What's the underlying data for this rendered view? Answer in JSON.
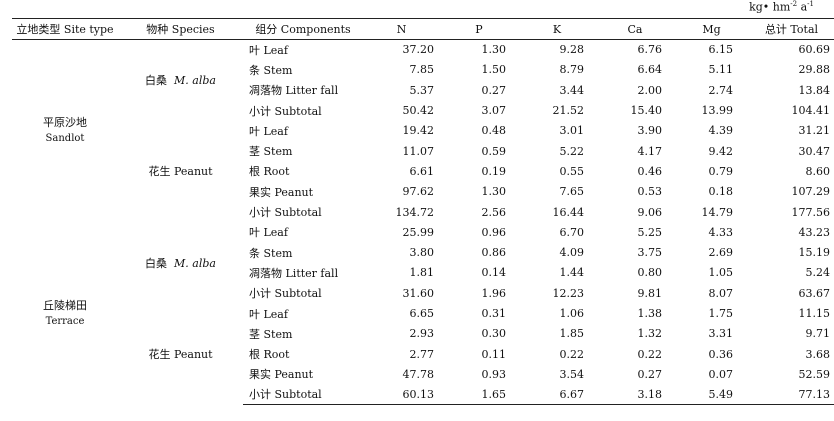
{
  "unit": {
    "base": "kg• hm",
    "exp1": "-2",
    "mid": "a",
    "exp2": "-1"
  },
  "headers": {
    "site": "立地类型 Site type",
    "species": "物种 Species",
    "components": "组分 Components",
    "n": "N",
    "p": "P",
    "k": "K",
    "ca": "Ca",
    "mg": "Mg",
    "total": "总计 Total"
  },
  "groups": [
    {
      "site_zh": "平原沙地",
      "site_en": "Sandlot",
      "species": [
        {
          "zh": "白桑",
          "latin": "M. alba",
          "rows": [
            {
              "comp": "叶 Leaf",
              "n": "37.20",
              "p": "1.30",
              "k": "9.28",
              "ca": "6.76",
              "mg": "6.15",
              "total": "60.69"
            },
            {
              "comp": "条 Stem",
              "n": "7.85",
              "p": "1.50",
              "k": "8.79",
              "ca": "6.64",
              "mg": "5.11",
              "total": "29.88"
            },
            {
              "comp": "凋落物 Litter fall",
              "n": "5.37",
              "p": "0.27",
              "k": "3.44",
              "ca": "2.00",
              "mg": "2.74",
              "total": "13.84"
            },
            {
              "comp": "小计 Subtotal",
              "n": "50.42",
              "p": "3.07",
              "k": "21.52",
              "ca": "15.40",
              "mg": "13.99",
              "total": "104.41"
            }
          ]
        },
        {
          "zh": "花生 Peanut",
          "latin": "",
          "rows": [
            {
              "comp": "叶 Leaf",
              "n": "19.42",
              "p": "0.48",
              "k": "3.01",
              "ca": "3.90",
              "mg": "4.39",
              "total": "31.21"
            },
            {
              "comp": "茎 Stem",
              "n": "11.07",
              "p": "0.59",
              "k": "5.22",
              "ca": "4.17",
              "mg": "9.42",
              "total": "30.47"
            },
            {
              "comp": "根 Root",
              "n": "6.61",
              "p": "0.19",
              "k": "0.55",
              "ca": "0.46",
              "mg": "0.79",
              "total": "8.60"
            },
            {
              "comp": "果实 Peanut",
              "n": "97.62",
              "p": "1.30",
              "k": "7.65",
              "ca": "0.53",
              "mg": "0.18",
              "total": "107.29"
            },
            {
              "comp": "小计 Subtotal",
              "n": "134.72",
              "p": "2.56",
              "k": "16.44",
              "ca": "9.06",
              "mg": "14.79",
              "total": "177.56"
            }
          ]
        }
      ]
    },
    {
      "site_zh": "丘陵梯田",
      "site_en": "Terrace",
      "species": [
        {
          "zh": "白桑",
          "latin": "M. alba",
          "rows": [
            {
              "comp": "叶 Leaf",
              "n": "25.99",
              "p": "0.96",
              "k": "6.70",
              "ca": "5.25",
              "mg": "4.33",
              "total": "43.23"
            },
            {
              "comp": "条 Stem",
              "n": "3.80",
              "p": "0.86",
              "k": "4.09",
              "ca": "3.75",
              "mg": "2.69",
              "total": "15.19"
            },
            {
              "comp": "凋落物 Litter fall",
              "n": "1.81",
              "p": "0.14",
              "k": "1.44",
              "ca": "0.80",
              "mg": "1.05",
              "total": "5.24"
            },
            {
              "comp": "小计 Subtotal",
              "n": "31.60",
              "p": "1.96",
              "k": "12.23",
              "ca": "9.81",
              "mg": "8.07",
              "total": "63.67"
            }
          ]
        },
        {
          "zh": "花生 Peanut",
          "latin": "",
          "rows": [
            {
              "comp": "叶 Leaf",
              "n": "6.65",
              "p": "0.31",
              "k": "1.06",
              "ca": "1.38",
              "mg": "1.75",
              "total": "11.15"
            },
            {
              "comp": "茎 Stem",
              "n": "2.93",
              "p": "0.30",
              "k": "1.85",
              "ca": "1.32",
              "mg": "3.31",
              "total": "9.71"
            },
            {
              "comp": "根 Root",
              "n": "2.77",
              "p": "0.11",
              "k": "0.22",
              "ca": "0.22",
              "mg": "0.36",
              "total": "3.68"
            },
            {
              "comp": "果实 Peanut",
              "n": "47.78",
              "p": "0.93",
              "k": "3.54",
              "ca": "0.27",
              "mg": "0.07",
              "total": "52.59"
            },
            {
              "comp": "小计 Subtotal",
              "n": "60.13",
              "p": "1.65",
              "k": "6.67",
              "ca": "3.18",
              "mg": "5.49",
              "total": "77.13"
            }
          ]
        }
      ]
    }
  ]
}
